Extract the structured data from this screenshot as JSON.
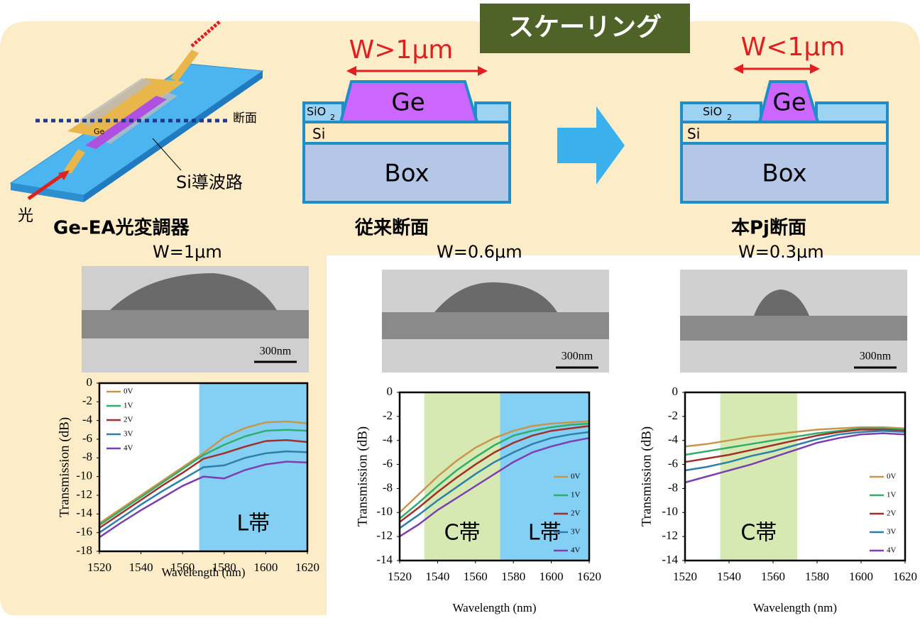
{
  "title": "スケーリング",
  "device": {
    "section": "断面",
    "ge": "Ge",
    "waveguide": "Si導波路",
    "light": "光",
    "name": "Ge-EA光変調器",
    "width": "W=1μm"
  },
  "conventional": {
    "width_label": "W>1μm",
    "ge": "Ge",
    "sio2": "SiO",
    "sio2_sub": "2",
    "si": "Si",
    "box": "Box",
    "name": "従来断面",
    "width": "W=0.6μm"
  },
  "proposed": {
    "width_label": "W<1μm",
    "ge": "Ge",
    "sio2": "SiO",
    "sio2_sub": "2",
    "si": "Si",
    "box": "Box",
    "name": "本Pj断面",
    "width": "W=0.3μm"
  },
  "tem_scale": [
    "300nm",
    "300nm",
    "300nm"
  ],
  "chart_data": [
    {
      "type": "line",
      "xlabel": "Wavelength (nm)",
      "ylabel": "Transmission (dB)",
      "legend": "upper left",
      "x": [
        1520,
        1530,
        1540,
        1550,
        1560,
        1570,
        1580,
        1590,
        1600,
        1610,
        1620
      ],
      "xlim": [
        1520,
        1620
      ],
      "xticks": [
        1520,
        1540,
        1560,
        1580,
        1600,
        1620
      ],
      "ylim": [
        -18,
        0
      ],
      "yticks": [
        0,
        -2,
        -4,
        -6,
        -8,
        -10,
        -12,
        -14,
        -16,
        -18
      ],
      "bands": [
        {
          "label": "L帯",
          "from": 1568,
          "to": 1620,
          "color": "#5bc0f0"
        }
      ],
      "series": [
        {
          "name": "0V",
          "color": "#c8964a",
          "values": [
            -15,
            -13.5,
            -12,
            -10.5,
            -9,
            -7.5,
            -5.8,
            -4.8,
            -4.2,
            -4.1,
            -4.3
          ]
        },
        {
          "name": "1V",
          "color": "#2fae6a",
          "values": [
            -15.2,
            -13.7,
            -12.2,
            -10.7,
            -9.2,
            -7.7,
            -6.6,
            -5.7,
            -5.1,
            -5,
            -5.1
          ]
        },
        {
          "name": "2V",
          "color": "#a0302a",
          "values": [
            -15.5,
            -14,
            -12.5,
            -11,
            -9.6,
            -8.1,
            -7.5,
            -6.8,
            -6.2,
            -6.1,
            -6.3
          ]
        },
        {
          "name": "3V",
          "color": "#2e7fa8",
          "values": [
            -16,
            -14.5,
            -13,
            -11.6,
            -10.3,
            -9,
            -8.8,
            -8,
            -7.5,
            -7.3,
            -7.4
          ]
        },
        {
          "name": "4V",
          "color": "#7b3fb0",
          "values": [
            -16.5,
            -15,
            -13.6,
            -12.3,
            -11,
            -10,
            -10.2,
            -9.3,
            -8.7,
            -8.4,
            -8.5
          ]
        }
      ]
    },
    {
      "type": "line",
      "xlabel": "Wavelength (nm)",
      "ylabel": "Transmission (dB)",
      "legend": "lower right",
      "x": [
        1520,
        1530,
        1540,
        1550,
        1560,
        1570,
        1580,
        1590,
        1600,
        1610,
        1620
      ],
      "xlim": [
        1520,
        1620
      ],
      "xticks": [
        1520,
        1540,
        1560,
        1580,
        1600,
        1620
      ],
      "ylim": [
        -14,
        0
      ],
      "yticks": [
        0,
        -2,
        -4,
        -6,
        -8,
        -10,
        -12,
        -14
      ],
      "bands": [
        {
          "label": "C帯",
          "from": 1533,
          "to": 1573,
          "color": "#c8e29a"
        },
        {
          "label": "L帯",
          "from": 1573,
          "to": 1620,
          "color": "#5bc0f0"
        }
      ],
      "series": [
        {
          "name": "0V",
          "color": "#c8964a",
          "values": [
            -10,
            -8.5,
            -7,
            -5.7,
            -4.6,
            -3.8,
            -3.2,
            -2.8,
            -2.6,
            -2.5,
            -2.4
          ]
        },
        {
          "name": "1V",
          "color": "#2fae6a",
          "values": [
            -10.5,
            -9.2,
            -7.8,
            -6.5,
            -5.4,
            -4.4,
            -3.6,
            -3.2,
            -2.9,
            -2.7,
            -2.6
          ]
        },
        {
          "name": "2V",
          "color": "#a0302a",
          "values": [
            -10.8,
            -9.6,
            -8.3,
            -7.1,
            -6,
            -5,
            -4.2,
            -3.6,
            -3.2,
            -3,
            -2.8
          ]
        },
        {
          "name": "3V",
          "color": "#2e7fa8",
          "values": [
            -11.3,
            -10.2,
            -9,
            -7.9,
            -6.8,
            -5.8,
            -5,
            -4.3,
            -3.8,
            -3.5,
            -3.3
          ]
        },
        {
          "name": "4V",
          "color": "#7b3fb0",
          "values": [
            -12,
            -11,
            -9.8,
            -8.8,
            -7.8,
            -6.8,
            -5.8,
            -5,
            -4.5,
            -4.1,
            -3.8
          ]
        }
      ]
    },
    {
      "type": "line",
      "xlabel": "Wavelength (nm)",
      "ylabel": "Transmission (dB)",
      "legend": "lower right",
      "x": [
        1520,
        1530,
        1540,
        1550,
        1560,
        1570,
        1580,
        1590,
        1600,
        1610,
        1620
      ],
      "xlim": [
        1520,
        1620
      ],
      "xticks": [
        1520,
        1540,
        1560,
        1580,
        1600,
        1620
      ],
      "ylim": [
        -14,
        0
      ],
      "yticks": [
        0,
        -2,
        -4,
        -6,
        -8,
        -10,
        -12,
        -14
      ],
      "bands": [
        {
          "label": "C帯",
          "from": 1536,
          "to": 1571,
          "color": "#c8e29a"
        }
      ],
      "series": [
        {
          "name": "0V",
          "color": "#c8964a",
          "values": [
            -4.5,
            -4.3,
            -4,
            -3.7,
            -3.5,
            -3.3,
            -3.1,
            -3,
            -2.9,
            -2.9,
            -3
          ]
        },
        {
          "name": "1V",
          "color": "#2fae6a",
          "values": [
            -5.2,
            -4.9,
            -4.6,
            -4.3,
            -4,
            -3.7,
            -3.4,
            -3.2,
            -3,
            -3,
            -3.1
          ]
        },
        {
          "name": "2V",
          "color": "#a0302a",
          "values": [
            -5.8,
            -5.5,
            -5.2,
            -4.8,
            -4.4,
            -4,
            -3.6,
            -3.3,
            -3.1,
            -3.1,
            -3.2
          ]
        },
        {
          "name": "3V",
          "color": "#2e7fa8",
          "values": [
            -6.5,
            -6.2,
            -5.8,
            -5.3,
            -4.9,
            -4.4,
            -3.9,
            -3.5,
            -3.3,
            -3.2,
            -3.3
          ]
        },
        {
          "name": "4V",
          "color": "#7b3fb0",
          "values": [
            -7.5,
            -7,
            -6.5,
            -6,
            -5.4,
            -4.8,
            -4.2,
            -3.8,
            -3.5,
            -3.4,
            -3.5
          ]
        }
      ]
    }
  ]
}
